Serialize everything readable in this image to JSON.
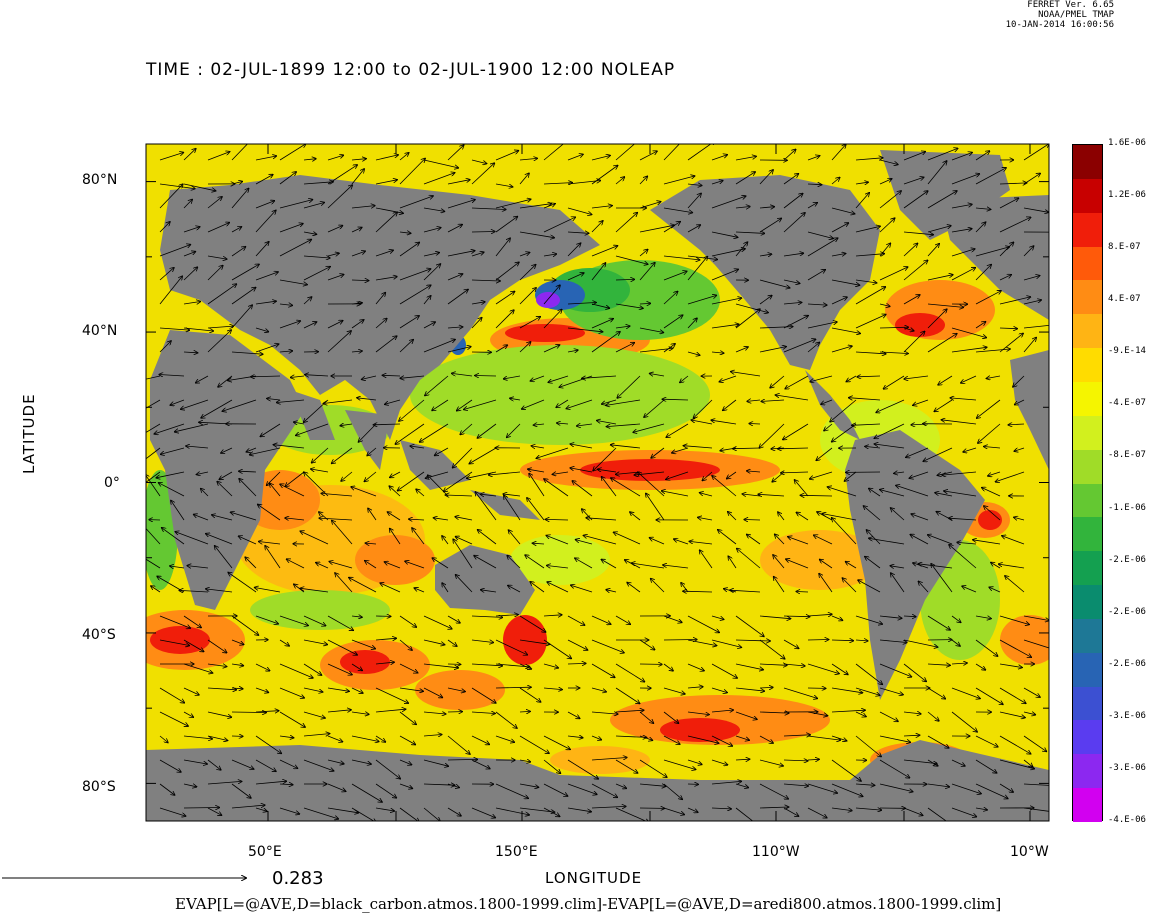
{
  "header": {
    "line1": "FERRET Ver. 6.65",
    "line2": "NOAA/PMEL TMAP",
    "line3": "10-JAN-2014 16:00:56"
  },
  "chart_data": {
    "type": "heatmap",
    "title": "TIME : 02-JUL-1899 12:00 to 02-JUL-1900 12:00 NOLEAP",
    "xlabel": "LONGITUDE",
    "ylabel": "LATITUDE",
    "x_ticks": [
      "50°E",
      "150°E",
      "110°W",
      "10°W"
    ],
    "y_ticks": [
      "80°N",
      "40°N",
      "0°",
      "40°S",
      "80°S"
    ],
    "y_tick_values": [
      80,
      40,
      0,
      -40,
      -80
    ],
    "ylim": [
      -90,
      90
    ],
    "vector_reference": "0.283",
    "caption": "EVAP[L=@AVE,D=black_carbon.atmos.1800-1999.clim]-EVAP[L=@AVE,D=aredi800.atmos.1800-1999.clim]",
    "colorbar": {
      "labels": [
        "1.6E-06",
        "1.2E-06",
        "8.E-07",
        "4.E-07",
        "-9.E-14",
        "-4.E-07",
        "-8.E-07",
        "-1.E-06",
        "-2.E-06",
        "-2.E-06",
        "-2.E-06",
        "-3.E-06",
        "-3.E-06",
        "-4.E-06"
      ],
      "colors": [
        "#8b0000",
        "#c80000",
        "#f01e0a",
        "#ff5a0a",
        "#ff8c14",
        "#ffb414",
        "#ffdc00",
        "#f5f500",
        "#d2f01e",
        "#a0dc28",
        "#64c832",
        "#32b43c",
        "#14a050",
        "#0a8c6e",
        "#1e7896",
        "#2864b4",
        "#3c50d2",
        "#5a3cf0",
        "#8c28f0",
        "#d200f0"
      ]
    }
  }
}
